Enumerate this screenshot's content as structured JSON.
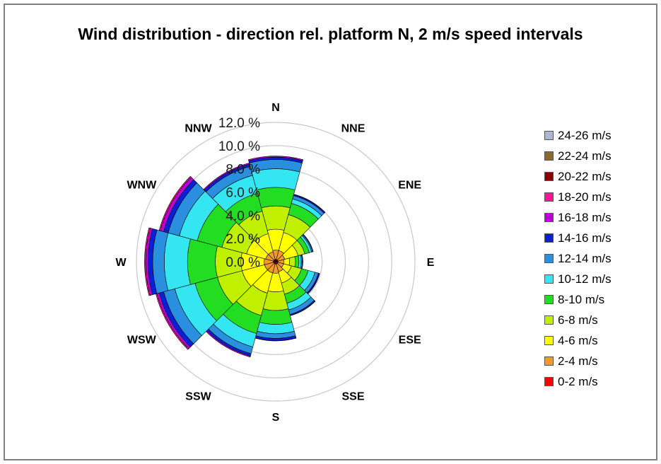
{
  "chart_data": {
    "type": "polar-bar",
    "title": "Wind distribution - direction rel. platform N, 2 m/s speed intervals",
    "directions": [
      "N",
      "NNE",
      "ENE",
      "E",
      "ESE",
      "SSE",
      "S",
      "SSW",
      "WSW",
      "W",
      "WNW",
      "NNW"
    ],
    "radial_tick_labels": [
      "0.0 %",
      "2.0 %",
      "4.0 %",
      "6.0 %",
      "8.0 %",
      "10.0 %",
      "12.0 %"
    ],
    "rmax": 12,
    "stacking": "cumulative",
    "series": [
      {
        "name": "0-2 m/s",
        "color": "#ff0000",
        "values": [
          0.2,
          0.2,
          0.2,
          0.2,
          0.2,
          0.2,
          0.2,
          0.2,
          0.2,
          0.2,
          0.2,
          0.2
        ]
      },
      {
        "name": "2-4 m/s",
        "color": "#f39a2b",
        "values": [
          0.8,
          0.8,
          0.6,
          0.5,
          0.5,
          0.7,
          0.8,
          0.8,
          0.8,
          0.8,
          0.7,
          0.7
        ]
      },
      {
        "name": "4-6 m/s",
        "color": "#ffff00",
        "values": [
          1.8,
          1.6,
          1.2,
          0.5,
          0.7,
          1.0,
          1.6,
          1.8,
          2.0,
          2.0,
          1.7,
          1.6
        ]
      },
      {
        "name": "6-8 m/s",
        "color": "#c0f000",
        "values": [
          2.0,
          1.6,
          0.6,
          0.5,
          0.9,
          1.0,
          1.6,
          2.0,
          2.2,
          2.2,
          2.2,
          2.0
        ]
      },
      {
        "name": "8-10 m/s",
        "color": "#22dd22",
        "values": [
          1.6,
          1.0,
          0.4,
          0.3,
          0.6,
          0.8,
          1.2,
          1.6,
          2.0,
          2.4,
          2.2,
          1.6
        ]
      },
      {
        "name": "10-12 m/s",
        "color": "#33e6f2",
        "values": [
          1.6,
          0.4,
          0.2,
          0.2,
          0.6,
          0.6,
          0.8,
          1.2,
          1.8,
          2.0,
          1.6,
          1.6
        ]
      },
      {
        "name": "12-14 m/s",
        "color": "#2b8fe0",
        "values": [
          0.8,
          0.3,
          0.1,
          0.1,
          0.3,
          0.4,
          0.4,
          0.6,
          1.0,
          1.0,
          1.0,
          0.8
        ]
      },
      {
        "name": "14-16 m/s",
        "color": "#0a1fd8",
        "values": [
          0.2,
          0.1,
          0.05,
          0.05,
          0.1,
          0.1,
          0.2,
          0.2,
          0.4,
          0.4,
          0.4,
          0.2
        ]
      },
      {
        "name": "16-18 m/s",
        "color": "#c000d8",
        "values": [
          0.1,
          0.02,
          0.0,
          0.0,
          0.02,
          0.02,
          0.02,
          0.1,
          0.2,
          0.2,
          0.3,
          0.1
        ]
      },
      {
        "name": "18-20 m/s",
        "color": "#ff1493",
        "values": [
          0.0,
          0.0,
          0.0,
          0.0,
          0.0,
          0.0,
          0.0,
          0.0,
          0.1,
          0.1,
          0.1,
          0.0
        ]
      },
      {
        "name": "20-22 m/s",
        "color": "#8b0000",
        "values": [
          0.0,
          0.0,
          0.0,
          0.0,
          0.0,
          0.0,
          0.0,
          0.0,
          0.0,
          0.0,
          0.0,
          0.0
        ]
      },
      {
        "name": "22-24 m/s",
        "color": "#8b6a2b",
        "values": [
          0.0,
          0.0,
          0.0,
          0.0,
          0.0,
          0.0,
          0.0,
          0.0,
          0.0,
          0.0,
          0.0,
          0.0
        ]
      },
      {
        "name": "24-26 m/s",
        "color": "#a9b7d0",
        "values": [
          0.0,
          0.0,
          0.0,
          0.0,
          0.0,
          0.0,
          0.0,
          0.0,
          0.0,
          0.0,
          0.0,
          0.0
        ]
      }
    ],
    "legend": {
      "position": "right",
      "entries": [
        "24-26 m/s",
        "22-24 m/s",
        "20-22 m/s",
        "18-20 m/s",
        "16-18 m/s",
        "14-16 m/s",
        "12-14 m/s",
        "10-12 m/s",
        "8-10 m/s",
        "6-8 m/s",
        "4-6 m/s",
        "2-4 m/s",
        "0-2 m/s"
      ]
    }
  }
}
